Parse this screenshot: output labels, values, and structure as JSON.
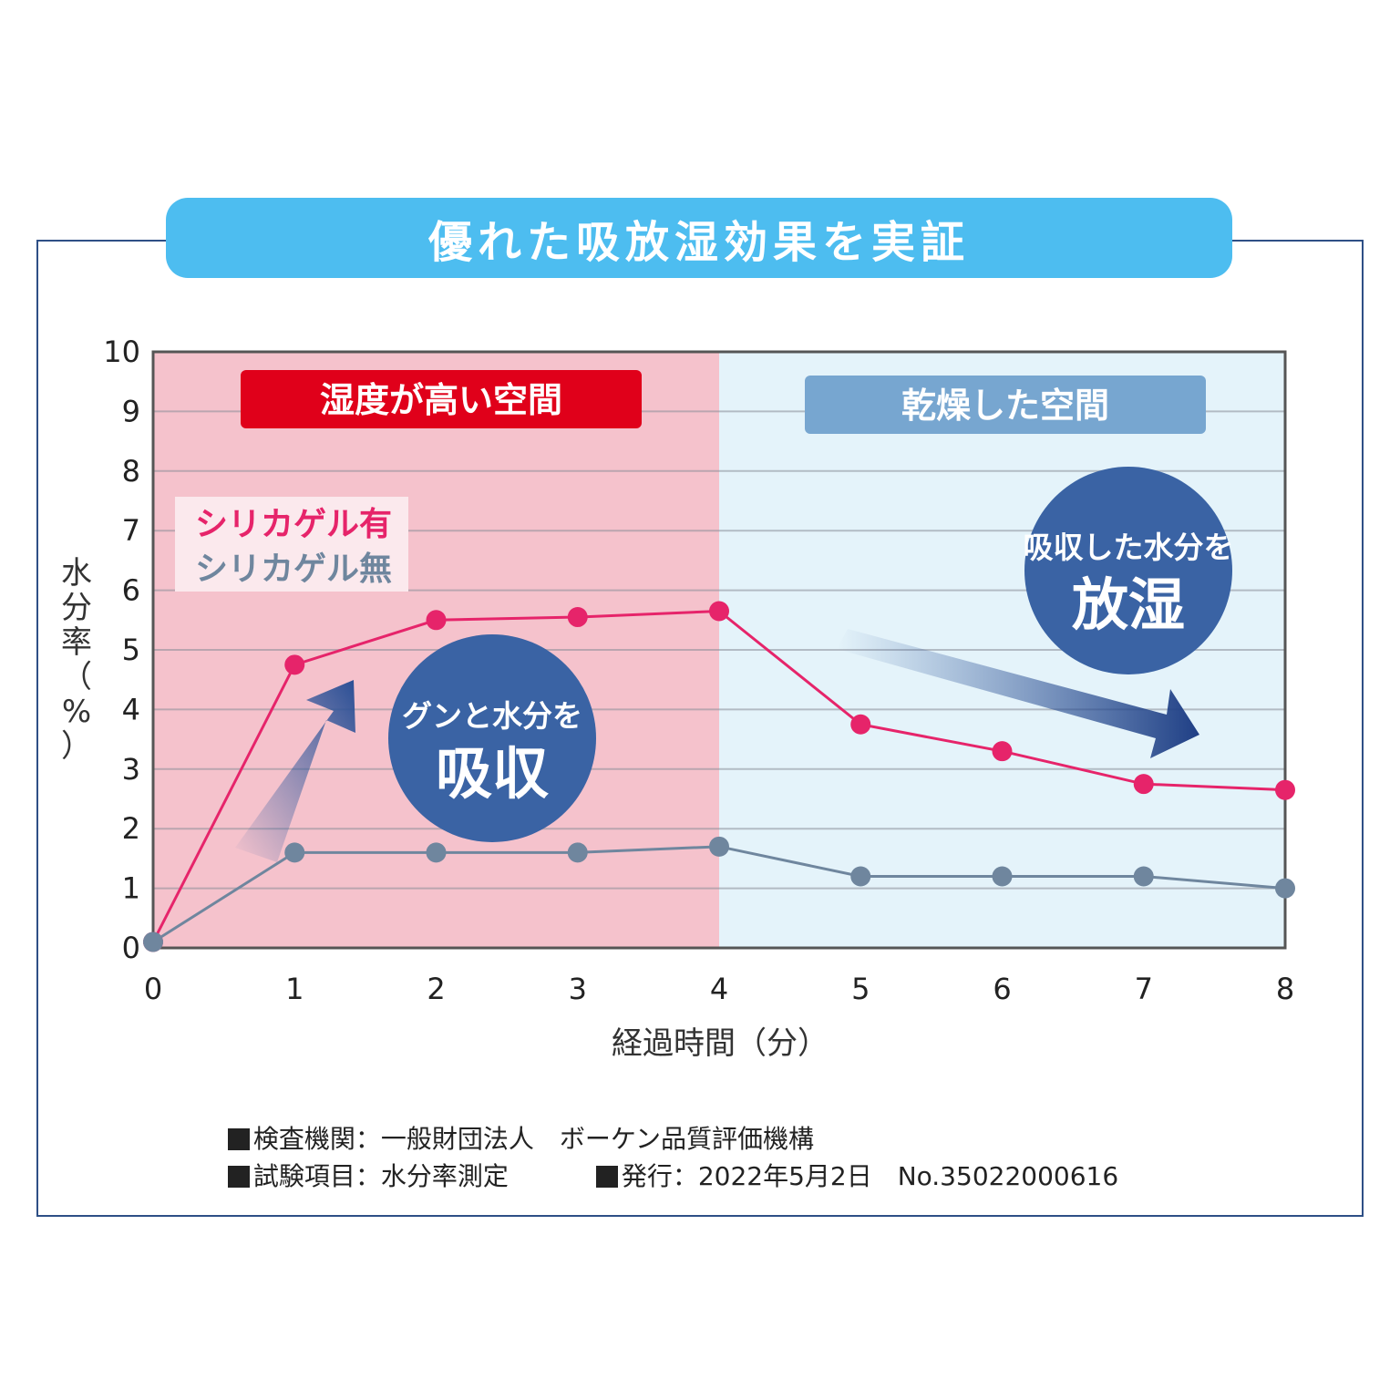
{
  "title": "優れた吸放湿効果を実証",
  "colors": {
    "title_bg": "#4dbdf0",
    "humid_bg": "#f5c2cc",
    "dry_bg": "#e4f3fa",
    "humid_label_bg": "#e0001a",
    "dry_label_bg": "#77a6d0",
    "with_gel": "#e6246a",
    "without_gel": "#6f869e",
    "bubble": "#3a63a4",
    "frame": "#2e4f86"
  },
  "chart_data": {
    "type": "line",
    "x": [
      0,
      1,
      2,
      3,
      4,
      5,
      6,
      7,
      8
    ],
    "xlim": [
      0,
      8
    ],
    "ylim": [
      0,
      10
    ],
    "xticks": [
      "0",
      "1",
      "2",
      "3",
      "4",
      "5",
      "6",
      "7",
      "8"
    ],
    "yticks": [
      "0",
      "1",
      "2",
      "3",
      "4",
      "5",
      "6",
      "7",
      "8",
      "9",
      "10"
    ],
    "xlabel": "経過時間（分）",
    "ylabel": "水分率（%）",
    "series": [
      {
        "name": "シリカゲル有",
        "color": "#e6246a",
        "values": [
          0.1,
          4.75,
          5.5,
          5.55,
          5.65,
          3.75,
          3.3,
          2.75,
          2.65
        ]
      },
      {
        "name": "シリカゲル無",
        "color": "#6f869e",
        "values": [
          0.1,
          1.6,
          1.6,
          1.6,
          1.7,
          1.2,
          1.2,
          1.2,
          1.0
        ]
      }
    ],
    "regions": [
      {
        "label": "湿度が高い空間",
        "from": 0,
        "to": 4
      },
      {
        "label": "乾燥した空間",
        "from": 4,
        "to": 8
      }
    ],
    "annotations": [
      {
        "line1": "グンと水分を",
        "line2": "吸収"
      },
      {
        "line1": "吸収した水分を",
        "line2": "放湿"
      }
    ],
    "grid": true,
    "legend_position": "top-left"
  },
  "notes": {
    "row1": "検査機関：一般財団法人　ボーケン品質評価機構",
    "row2a": "試験項目：水分率測定",
    "row2b": "発行：2022年5月2日　No.35022000616"
  }
}
